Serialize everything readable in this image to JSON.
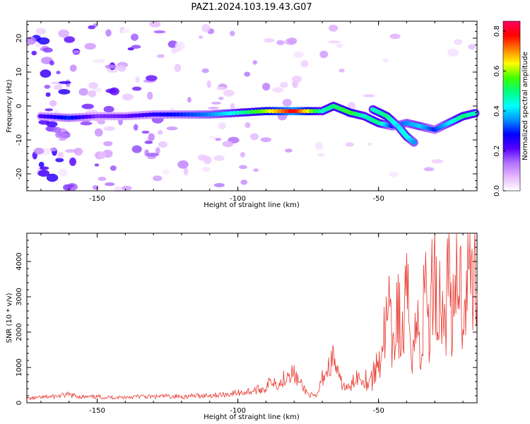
{
  "title": "PAZ1.2024.103.19.43.G07",
  "chart_data": [
    {
      "type": "heatmap",
      "xlabel": "Height of straight line (km)",
      "ylabel": "Frequency (Hz)",
      "xlim": [
        -175,
        -15
      ],
      "ylim": [
        -25,
        25
      ],
      "x_ticks": [
        -150,
        -100,
        -50
      ],
      "y_ticks": [
        -20,
        -10,
        0,
        10,
        20
      ],
      "colorbar": {
        "label": "Normalized spectral amplitude",
        "range": [
          0,
          0.85
        ],
        "ticks": [
          0.0,
          0.2,
          0.4,
          0.6,
          0.8
        ],
        "colors": [
          "#ffffff",
          "#e6b8ff",
          "#b070ff",
          "#5500ff",
          "#0000ff",
          "#0090ff",
          "#00ffff",
          "#00ff80",
          "#40ff00",
          "#ffff00",
          "#ff8000",
          "#ff0000",
          "#ff0060"
        ]
      },
      "ridge": [
        {
          "x": -170,
          "y": -3,
          "a": 0.22
        },
        {
          "x": -160,
          "y": -3.5,
          "a": 0.3
        },
        {
          "x": -150,
          "y": -3,
          "a": 0.18
        },
        {
          "x": -140,
          "y": -3,
          "a": 0.2
        },
        {
          "x": -130,
          "y": -2.5,
          "a": 0.25
        },
        {
          "x": -120,
          "y": -2.5,
          "a": 0.3
        },
        {
          "x": -110,
          "y": -2.5,
          "a": 0.35
        },
        {
          "x": -100,
          "y": -2,
          "a": 0.45
        },
        {
          "x": -90,
          "y": -1.5,
          "a": 0.6
        },
        {
          "x": -80,
          "y": -1.5,
          "a": 0.8
        },
        {
          "x": -70,
          "y": -1.5,
          "a": 0.45
        },
        {
          "x": -66,
          "y": 0,
          "a": 0.5
        },
        {
          "x": -60,
          "y": -2,
          "a": 0.55
        },
        {
          "x": -55,
          "y": -3,
          "a": 0.45
        },
        {
          "x": -50,
          "y": -5,
          "a": 0.5
        },
        {
          "x": -45,
          "y": -6,
          "a": 0.3
        },
        {
          "x": -40,
          "y": -5,
          "a": 0.35
        },
        {
          "x": -35,
          "y": -6,
          "a": 0.4
        },
        {
          "x": -30,
          "y": -7,
          "a": 0.3
        },
        {
          "x": -25,
          "y": -5,
          "a": 0.4
        },
        {
          "x": -20,
          "y": -3,
          "a": 0.5
        },
        {
          "x": -15,
          "y": -2,
          "a": 0.45
        }
      ],
      "branch": [
        {
          "x": -52,
          "y": -1,
          "a": 0.45
        },
        {
          "x": -47,
          "y": -3,
          "a": 0.5
        },
        {
          "x": -43,
          "y": -6,
          "a": 0.4
        },
        {
          "x": -40,
          "y": -9,
          "a": 0.45
        },
        {
          "x": -37,
          "y": -11,
          "a": 0.35
        }
      ]
    },
    {
      "type": "line",
      "xlabel": "Height of straight line (km)",
      "ylabel": "SNR (10 * v/v)",
      "xlim": [
        -175,
        -15
      ],
      "ylim": [
        0,
        4800
      ],
      "x_ticks": [
        -150,
        -100,
        -50
      ],
      "y_ticks": [
        0,
        1000,
        2000,
        3000,
        4000
      ],
      "line_color": "#e8382e",
      "series": [
        {
          "x": [
            -175,
            -170,
            -165,
            -160,
            -155,
            -150,
            -145,
            -140,
            -135,
            -130,
            -125,
            -120,
            -115,
            -110,
            -105,
            -100,
            -95,
            -90,
            -88,
            -85,
            -82,
            -80,
            -78,
            -75,
            -72,
            -70,
            -68,
            -66,
            -64,
            -62,
            -60,
            -58,
            -55,
            -52,
            -50,
            -48,
            -46,
            -45,
            -43,
            -42,
            -40,
            -38,
            -36,
            -35,
            -33,
            -32,
            -30,
            -29,
            -28,
            -27,
            -25,
            -23,
            -22,
            -20,
            -19,
            -18,
            -17,
            -16,
            -15
          ],
          "y": [
            120,
            150,
            180,
            230,
            160,
            170,
            150,
            160,
            180,
            170,
            190,
            170,
            200,
            210,
            230,
            280,
            330,
            420,
            650,
            520,
            900,
            800,
            550,
            250,
            160,
            700,
            950,
            1300,
            650,
            450,
            400,
            780,
            650,
            700,
            1200,
            1900,
            2500,
            1200,
            3000,
            1500,
            2900,
            1700,
            2200,
            1300,
            3900,
            1700,
            4600,
            2000,
            3400,
            2100,
            3800,
            1900,
            4000,
            2800,
            3400,
            4500,
            3000,
            4400,
            3100
          ]
        }
      ]
    }
  ]
}
